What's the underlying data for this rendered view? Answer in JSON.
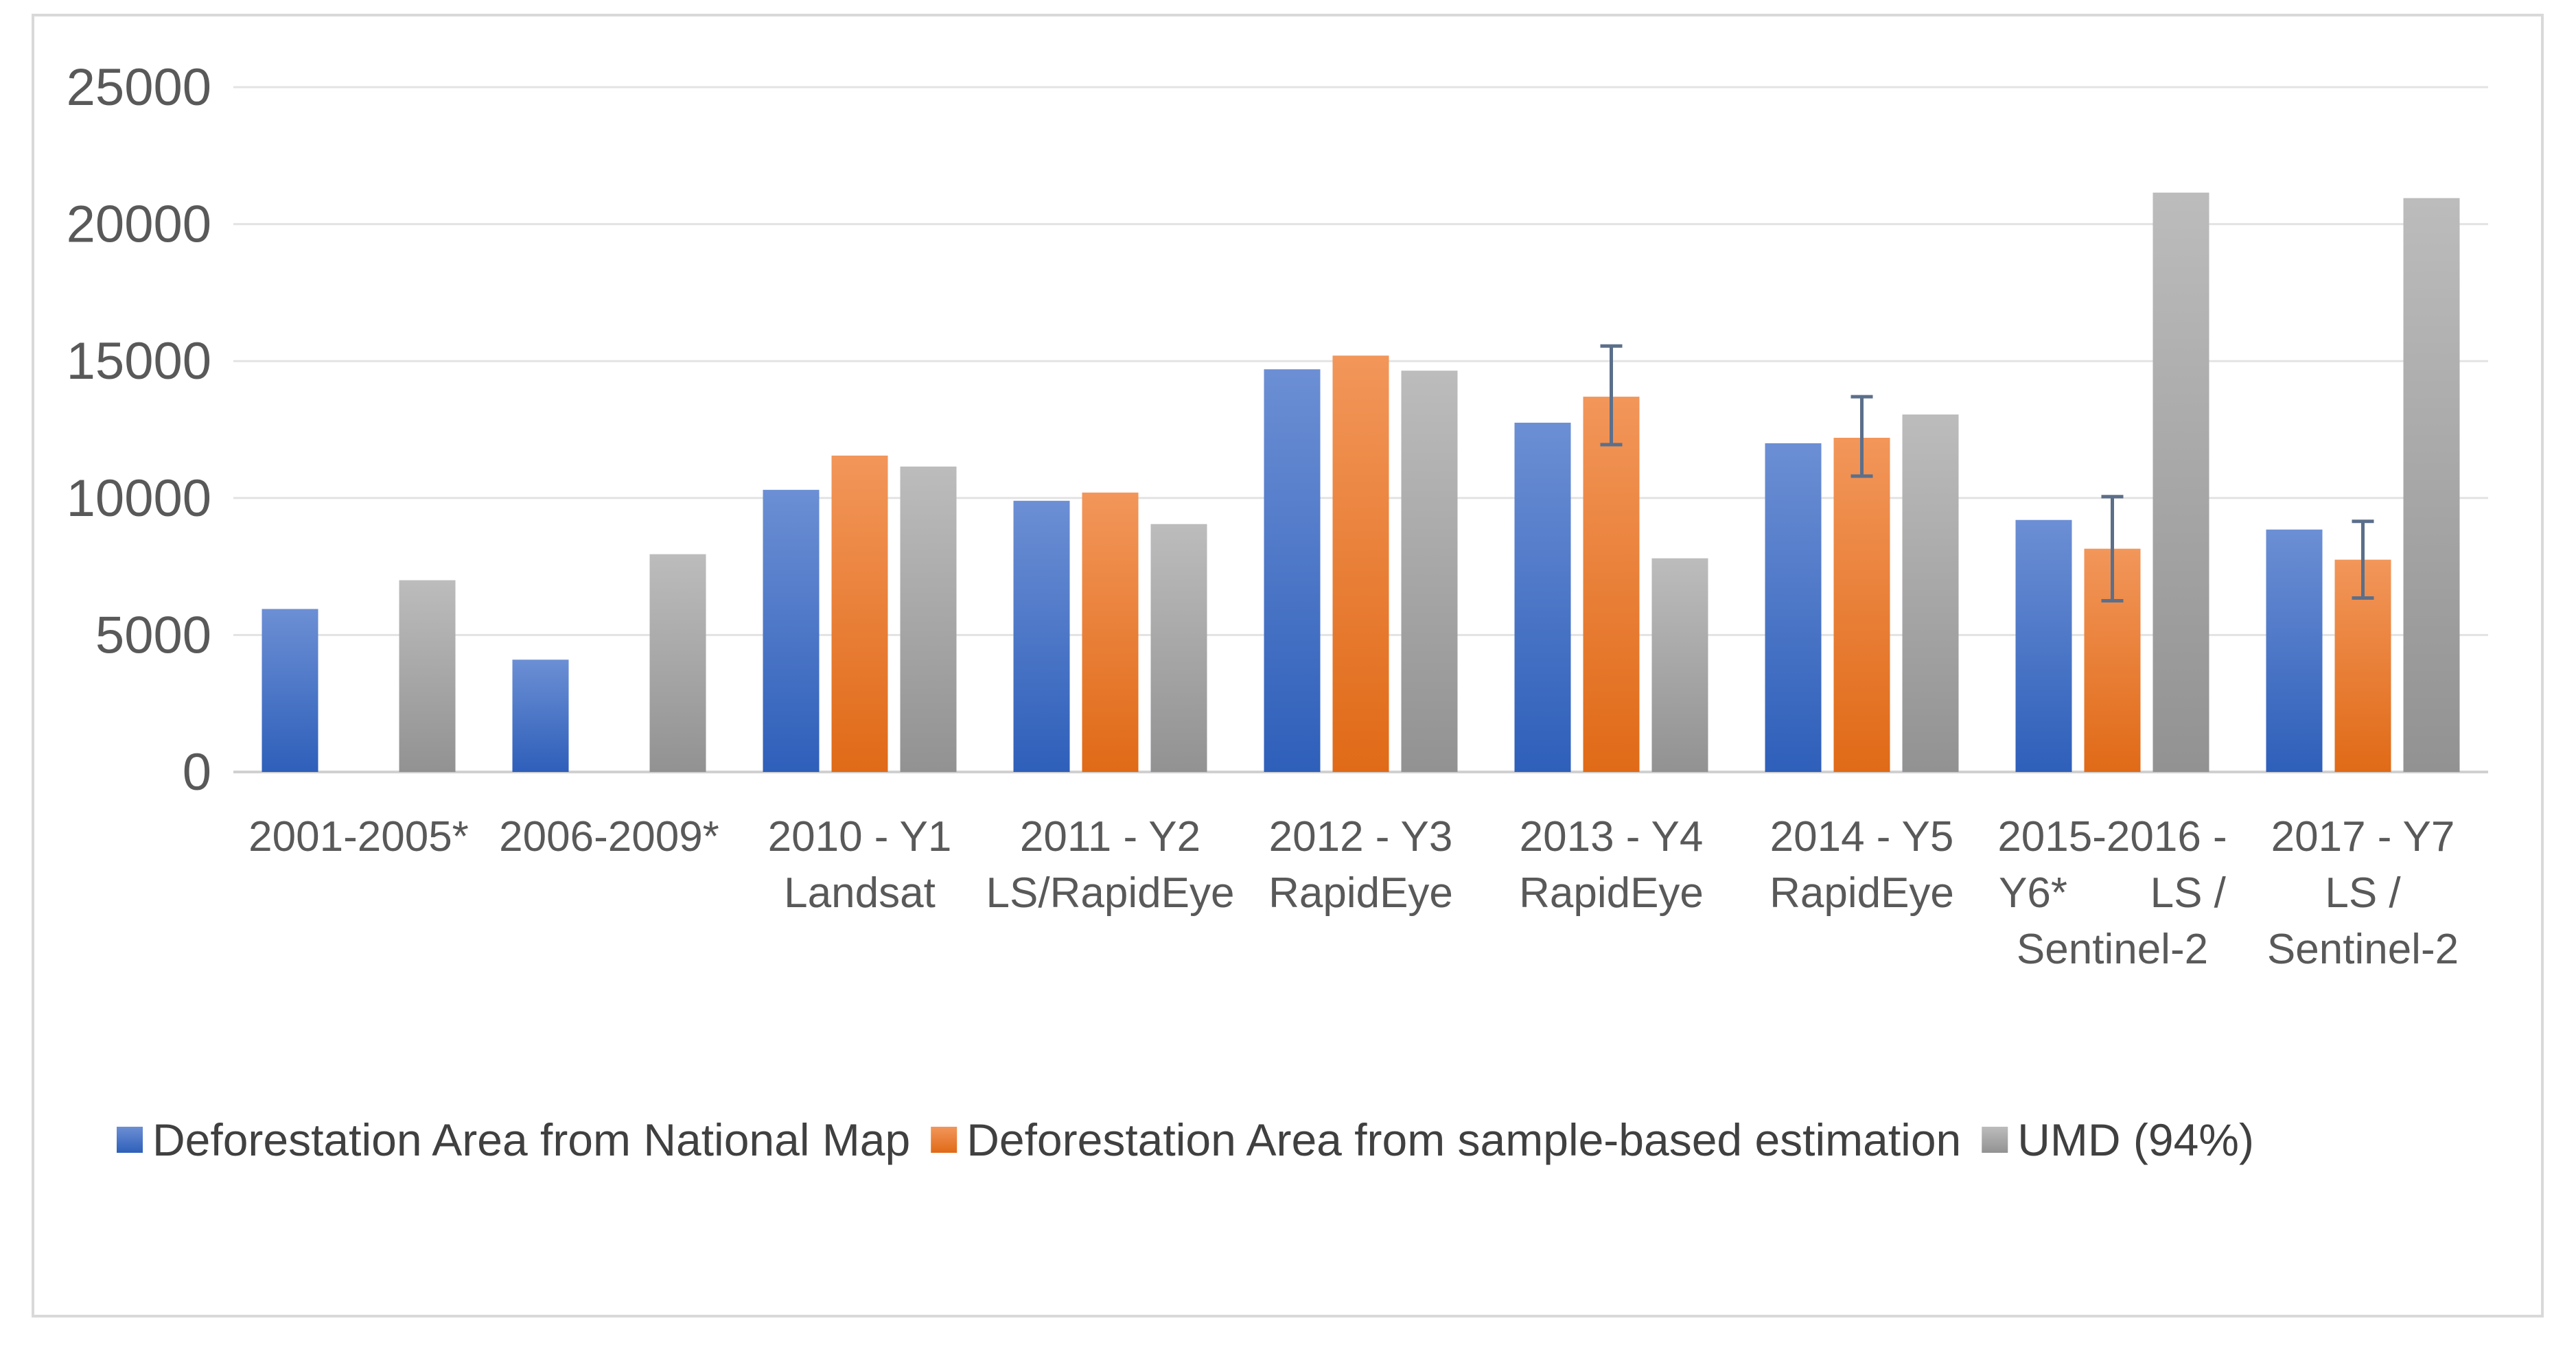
{
  "chart_data": {
    "type": "bar",
    "title": "",
    "xlabel": "",
    "ylabel": "",
    "ylim": [
      0,
      25000
    ],
    "yticks": [
      0,
      5000,
      10000,
      15000,
      20000,
      25000
    ],
    "grid": true,
    "legend_position": "bottom",
    "categories": [
      [
        "2001-2005*"
      ],
      [
        "2006-2009*"
      ],
      [
        "2010 - Y1",
        "Landsat"
      ],
      [
        "2011 - Y2",
        "LS/RapidEye"
      ],
      [
        "2012 - Y3",
        "RapidEye"
      ],
      [
        "2013 - Y4",
        "RapidEye"
      ],
      [
        "2014 - Y5",
        "RapidEye"
      ],
      [
        "2015-2016 -",
        "Y6*       LS /",
        "Sentinel-2"
      ],
      [
        "2017 - Y7",
        "LS /",
        "Sentinel-2"
      ]
    ],
    "series": [
      {
        "name": "Deforestation Area from National Map",
        "color": "#4472c4",
        "values": [
          5950,
          4100,
          10300,
          9900,
          14700,
          12750,
          12000,
          9200,
          8850
        ]
      },
      {
        "name": "Deforestation Area from sample-based estimation",
        "color": "#ed7d31",
        "values": [
          null,
          null,
          11550,
          10200,
          15200,
          13700,
          12200,
          8150,
          7750
        ],
        "error": [
          null,
          null,
          null,
          null,
          null,
          [
            11950,
            15550
          ],
          [
            10800,
            13700
          ],
          [
            6250,
            10050
          ],
          [
            6350,
            9150
          ]
        ]
      },
      {
        "name": "UMD (94%)",
        "color": "#a5a5a5",
        "values": [
          7000,
          7950,
          11150,
          9050,
          14650,
          7800,
          13050,
          21150,
          20950
        ]
      }
    ]
  }
}
